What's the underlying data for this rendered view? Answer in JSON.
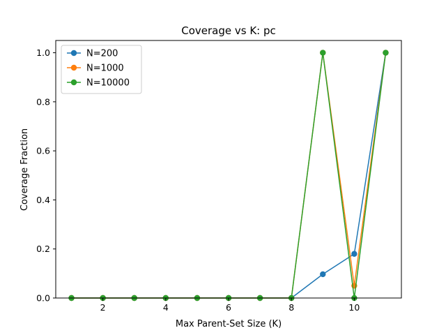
{
  "chart_data": {
    "type": "line",
    "title": "Coverage vs K: pc",
    "xlabel": "Max Parent-Set Size (K)",
    "ylabel": "Coverage Fraction",
    "xlim": [
      0.5,
      11.5
    ],
    "ylim": [
      0.0,
      1.05
    ],
    "xticks": [
      2,
      4,
      6,
      8,
      10
    ],
    "yticks": [
      0.0,
      0.2,
      0.4,
      0.6,
      0.8,
      1.0
    ],
    "grid": false,
    "legend_position": "top-left",
    "x": [
      1,
      2,
      3,
      4,
      5,
      6,
      7,
      8,
      9,
      10,
      11
    ],
    "series": [
      {
        "name": "N=200",
        "color": "#1f77b4",
        "marker": "circle",
        "values": [
          0,
          0,
          0,
          0,
          0,
          0,
          0,
          0,
          0.097,
          0.18,
          1.0
        ]
      },
      {
        "name": "N=1000",
        "color": "#ff7f0e",
        "marker": "circle",
        "values": [
          0,
          0,
          0,
          0,
          0,
          0,
          0,
          0,
          1.0,
          0.05,
          1.0
        ]
      },
      {
        "name": "N=10000",
        "color": "#2ca02c",
        "marker": "circle",
        "values": [
          0,
          0,
          0,
          0,
          0,
          0,
          0,
          0,
          1.0,
          0.0,
          1.0
        ]
      }
    ]
  }
}
